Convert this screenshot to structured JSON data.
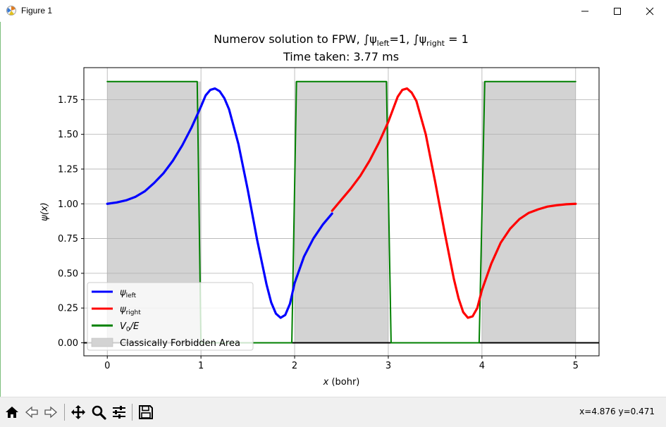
{
  "window": {
    "title": "Figure 1",
    "icon": "matplotlib-figure-icon",
    "controls": [
      "minimize-icon",
      "maximize-icon",
      "close-icon"
    ]
  },
  "chart_data": {
    "type": "line",
    "title_line1_prefix": "Numerov solution to FPW, ∫ψ",
    "title_sub1": "left",
    "title_mid": "=1, ∫ψ",
    "title_sub2": "right",
    "title_suffix": " = 1",
    "title_line2": "Time taken: 3.77 ms",
    "xlabel": "x (bohr)",
    "ylabel": "ψ(x)",
    "xlim": [
      -0.25,
      5.25
    ],
    "ylim": [
      -0.094,
      1.98
    ],
    "xticks": [
      "0",
      "1",
      "2",
      "3",
      "4",
      "5"
    ],
    "yticks": [
      "0.00",
      "0.25",
      "0.50",
      "0.75",
      "1.00",
      "1.25",
      "1.50",
      "1.75"
    ],
    "grid": true,
    "legend_position": "lower-left",
    "legend": [
      {
        "label": "ψ",
        "sub": "left",
        "color": "#0000ff",
        "kind": "line"
      },
      {
        "label": "ψ",
        "sub": "right",
        "color": "#ff0000",
        "kind": "line"
      },
      {
        "label": "V",
        "sub": "0",
        "suffix": "/E",
        "color": "#008000",
        "kind": "line"
      },
      {
        "label": "Classically Forbidden Area",
        "color": "#d3d3d3",
        "kind": "patch"
      }
    ],
    "forbidden_regions": [
      [
        0,
        1
      ],
      [
        2,
        3
      ],
      [
        4,
        5
      ]
    ],
    "series": [
      {
        "name": "ψleft",
        "color": "#0000ff",
        "x": [
          0.0,
          0.1,
          0.2,
          0.3,
          0.4,
          0.5,
          0.6,
          0.7,
          0.8,
          0.9,
          1.0,
          1.05,
          1.1,
          1.15,
          1.2,
          1.25,
          1.3,
          1.4,
          1.5,
          1.6,
          1.7,
          1.75,
          1.8,
          1.85,
          1.9,
          1.95,
          2.0,
          2.1,
          2.2,
          2.3,
          2.4
        ],
        "y": [
          1.0,
          1.01,
          1.025,
          1.05,
          1.09,
          1.15,
          1.22,
          1.31,
          1.42,
          1.55,
          1.7,
          1.78,
          1.82,
          1.83,
          1.81,
          1.76,
          1.68,
          1.43,
          1.1,
          0.74,
          0.42,
          0.29,
          0.21,
          0.18,
          0.2,
          0.28,
          0.43,
          0.62,
          0.75,
          0.85,
          0.93
        ]
      },
      {
        "name": "ψright",
        "color": "#ff0000",
        "x": [
          2.4,
          2.5,
          2.6,
          2.7,
          2.8,
          2.9,
          3.0,
          3.05,
          3.1,
          3.15,
          3.2,
          3.25,
          3.3,
          3.4,
          3.5,
          3.6,
          3.7,
          3.75,
          3.8,
          3.85,
          3.9,
          3.95,
          4.0,
          4.1,
          4.2,
          4.3,
          4.4,
          4.5,
          4.6,
          4.7,
          4.8,
          4.9,
          5.0
        ],
        "y": [
          0.95,
          1.03,
          1.11,
          1.2,
          1.31,
          1.44,
          1.59,
          1.68,
          1.77,
          1.82,
          1.83,
          1.8,
          1.74,
          1.5,
          1.16,
          0.8,
          0.46,
          0.32,
          0.22,
          0.18,
          0.19,
          0.25,
          0.38,
          0.57,
          0.72,
          0.82,
          0.89,
          0.935,
          0.96,
          0.98,
          0.99,
          0.997,
          1.0
        ]
      },
      {
        "name": "V0/E",
        "color": "#008000",
        "x": [
          0.0,
          0.96,
          1.0,
          1.97,
          2.02,
          2.98,
          3.03,
          3.97,
          4.03,
          5.0
        ],
        "y": [
          1.88,
          1.88,
          0.0,
          0.0,
          1.88,
          1.88,
          0.0,
          0.0,
          1.88,
          1.88
        ]
      }
    ]
  },
  "toolbar": {
    "buttons": [
      {
        "name": "home-button",
        "icon": "home-icon"
      },
      {
        "name": "back-button",
        "icon": "back-arrow-icon"
      },
      {
        "name": "forward-button",
        "icon": "forward-arrow-icon"
      },
      {
        "name": "pan-button",
        "icon": "move-icon"
      },
      {
        "name": "zoom-button",
        "icon": "zoom-icon"
      },
      {
        "name": "configure-subplots-button",
        "icon": "sliders-icon"
      },
      {
        "name": "save-button",
        "icon": "save-icon"
      }
    ],
    "coords": "x=4.876 y=0.471"
  }
}
